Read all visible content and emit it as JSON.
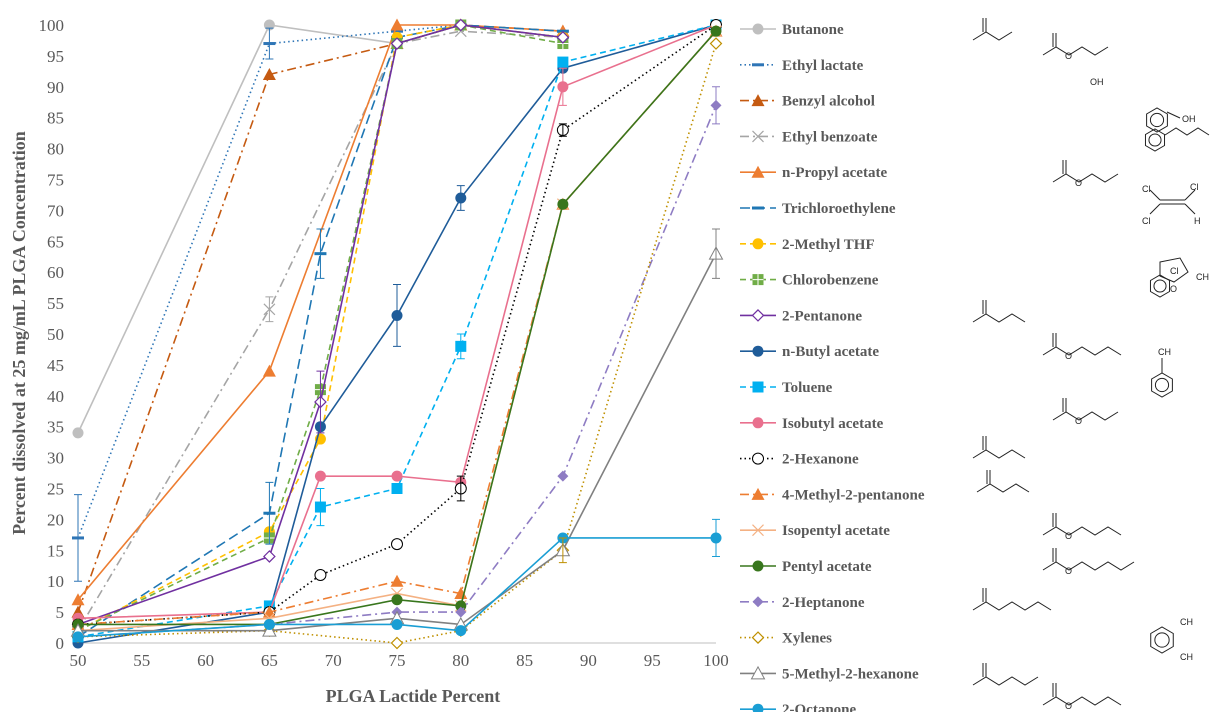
{
  "chart_data": {
    "type": "line",
    "title": "",
    "xlabel": "PLGA Lactide Percent",
    "ylabel": "Percent dissolved at 25 mg/mL PLGA Concentration",
    "xlim": [
      50,
      100
    ],
    "ylim": [
      0,
      100
    ],
    "xticks": [
      50,
      55,
      60,
      65,
      70,
      75,
      80,
      85,
      90,
      95,
      100
    ],
    "yticks": [
      0,
      5,
      10,
      15,
      20,
      25,
      30,
      35,
      40,
      45,
      50,
      55,
      60,
      65,
      70,
      75,
      80,
      85,
      90,
      95,
      100
    ],
    "grid": false,
    "legend_position": "right",
    "x_categories_note": "",
    "series": [
      {
        "name": "Butanone",
        "color": "#BFBFBF",
        "dash": "solid",
        "marker": "circle",
        "x": [
          50,
          65,
          75,
          80,
          88
        ],
        "y": [
          34,
          100,
          97,
          100,
          98
        ]
      },
      {
        "name": "Ethyl lactate",
        "color": "#2E75B6",
        "dash": "dot",
        "marker": "dash",
        "x": [
          50,
          65,
          75,
          80,
          88
        ],
        "y": [
          17,
          97,
          99,
          100,
          98
        ]
      },
      {
        "name": "Benzyl alcohol",
        "color": "#C55A11",
        "dash": "dashdot",
        "marker": "triangle",
        "x": [
          50,
          65,
          75,
          80,
          88
        ],
        "y": [
          5,
          92,
          97,
          100,
          99
        ]
      },
      {
        "name": "Ethyl benzoate",
        "color": "#A5A5A5",
        "dash": "dashdot",
        "marker": "x",
        "x": [
          50,
          65,
          75,
          80,
          88
        ],
        "y": [
          2,
          54,
          97,
          99,
          98
        ]
      },
      {
        "name": "n-Propyl acetate",
        "color": "#ED7D31",
        "dash": "solid",
        "marker": "triangle",
        "x": [
          50,
          65,
          75,
          80,
          88
        ],
        "y": [
          7,
          44,
          100,
          100,
          99
        ]
      },
      {
        "name": "Trichloroethylene",
        "color": "#1F77B4",
        "dash": "longdash",
        "marker": "dash",
        "x": [
          50,
          65,
          69,
          75,
          80,
          88
        ],
        "y": [
          1,
          21,
          63,
          98,
          100,
          99
        ]
      },
      {
        "name": "2-Methyl THF",
        "color": "#FFC000",
        "dash": "dash",
        "marker": "circle",
        "x": [
          50,
          65,
          69,
          75,
          80,
          88
        ],
        "y": [
          2,
          18,
          33,
          98,
          100,
          98
        ]
      },
      {
        "name": "Chlorobenzene",
        "color": "#70AD47",
        "dash": "dash",
        "marker": "square-plus",
        "x": [
          50,
          65,
          69,
          75,
          80,
          88
        ],
        "y": [
          2,
          17,
          41,
          97,
          100,
          97
        ]
      },
      {
        "name": "2-Pentanone",
        "color": "#7030A0",
        "dash": "solid",
        "marker": "diamond-open",
        "x": [
          50,
          65,
          69,
          75,
          80,
          88
        ],
        "y": [
          3,
          14,
          39,
          97,
          100,
          98
        ]
      },
      {
        "name": "n-Butyl acetate",
        "color": "#1F5C99",
        "dash": "solid",
        "marker": "circle",
        "x": [
          50,
          65,
          69,
          75,
          80,
          88,
          100
        ],
        "y": [
          0,
          5,
          35,
          53,
          72,
          93,
          100
        ]
      },
      {
        "name": "Toluene",
        "color": "#00B0F0",
        "dash": "dash",
        "marker": "square",
        "x": [
          50,
          65,
          69,
          75,
          80,
          88,
          100
        ],
        "y": [
          1,
          6,
          22,
          25,
          48,
          94,
          100
        ]
      },
      {
        "name": "Isobutyl acetate",
        "color": "#E9708E",
        "dash": "solid",
        "marker": "circle",
        "x": [
          50,
          65,
          69,
          75,
          80,
          88,
          100
        ],
        "y": [
          4,
          5,
          27,
          27,
          26,
          90,
          100
        ]
      },
      {
        "name": "2-Hexanone",
        "color": "#000000",
        "dash": "dot",
        "marker": "circle-open",
        "x": [
          50,
          65,
          69,
          75,
          80,
          88,
          100
        ],
        "y": [
          3,
          5,
          11,
          16,
          25,
          83,
          100
        ]
      },
      {
        "name": "4-Methyl-2-pentanone",
        "color": "#ED7D31",
        "dash": "dashdot",
        "marker": "triangle",
        "x": [
          50,
          65,
          75,
          80,
          88,
          100
        ],
        "y": [
          3,
          5,
          10,
          8,
          71,
          99
        ]
      },
      {
        "name": "Isopentyl acetate",
        "color": "#F4B183",
        "dash": "solid",
        "marker": "x",
        "x": [
          50,
          65,
          75,
          80,
          88,
          100
        ],
        "y": [
          2,
          4,
          8,
          6,
          71,
          99
        ]
      },
      {
        "name": "Pentyl acetate",
        "color": "#38761D",
        "dash": "solid",
        "marker": "circle",
        "x": [
          50,
          65,
          75,
          80,
          88,
          100
        ],
        "y": [
          3,
          3,
          7,
          6,
          71,
          99
        ]
      },
      {
        "name": "2-Heptanone",
        "color": "#8E7CC3",
        "dash": "dashdot",
        "marker": "diamond",
        "x": [
          50,
          65,
          75,
          80,
          88,
          100
        ],
        "y": [
          1,
          3,
          5,
          5,
          27,
          87
        ]
      },
      {
        "name": "Xylenes",
        "color": "#BF9000",
        "dash": "dot",
        "marker": "diamond-open",
        "x": [
          50,
          65,
          75,
          80,
          88,
          100
        ],
        "y": [
          1,
          2,
          0,
          2,
          15,
          97
        ]
      },
      {
        "name": "5-Methyl-2-hexanone",
        "color": "#808080",
        "dash": "solid",
        "marker": "triangle-open",
        "x": [
          50,
          65,
          75,
          80,
          88,
          100
        ],
        "y": [
          2,
          2,
          4,
          3,
          15,
          63
        ]
      },
      {
        "name": "2-Octanone",
        "color": "#1A9ED4",
        "dash": "solid",
        "marker": "circle",
        "x": [
          50,
          65,
          75,
          80,
          88,
          100
        ],
        "y": [
          1,
          3,
          3,
          2,
          17,
          17
        ]
      }
    ],
    "error_bars": [
      {
        "series": "Ethyl lactate",
        "x": 50,
        "y": 17,
        "err": 7
      },
      {
        "series": "Ethyl lactate",
        "x": 65,
        "y": 97,
        "err": 2.5
      },
      {
        "series": "Trichloroethylene",
        "x": 65,
        "y": 21,
        "err": 5
      },
      {
        "series": "Trichloroethylene",
        "x": 69,
        "y": 63,
        "err": 4
      },
      {
        "series": "Ethyl benzoate",
        "x": 65,
        "y": 54,
        "err": 2
      },
      {
        "series": "2-Pentanone",
        "x": 69,
        "y": 39,
        "err": 5
      },
      {
        "series": "Toluene",
        "x": 69,
        "y": 22,
        "err": 3
      },
      {
        "series": "n-Butyl acetate",
        "x": 75,
        "y": 53,
        "err": 5
      },
      {
        "series": "n-Butyl acetate",
        "x": 80,
        "y": 72,
        "err": 2
      },
      {
        "series": "Toluene",
        "x": 80,
        "y": 48,
        "err": 2
      },
      {
        "series": "Isobutyl acetate",
        "x": 88,
        "y": 90,
        "err": 3
      },
      {
        "series": "2-Hexanone",
        "x": 80,
        "y": 25,
        "err": 2
      },
      {
        "series": "2-Hexanone",
        "x": 88,
        "y": 83,
        "err": 1
      },
      {
        "series": "Xylenes",
        "x": 88,
        "y": 15,
        "err": 2
      },
      {
        "series": "2-Heptanone",
        "x": 100,
        "y": 87,
        "err": 3
      },
      {
        "series": "5-Methyl-2-hexanone",
        "x": 100,
        "y": 63,
        "err": 4
      },
      {
        "series": "2-Octanone",
        "x": 100,
        "y": 17,
        "err": 3
      }
    ]
  },
  "structure_icons": [
    "butanone-structure-icon",
    "ethyl-lactate-structure-icon",
    "benzyl-alcohol-structure-icon",
    "ethyl-benzoate-structure-icon",
    "propyl-acetate-structure-icon",
    "trichloroethylene-structure-icon",
    "methyl-thf-structure-icon",
    "chlorobenzene-structure-icon",
    "pentanone-structure-icon",
    "butyl-acetate-structure-icon",
    "toluene-structure-icon",
    "isobutyl-acetate-structure-icon",
    "hexanone-structure-icon",
    "methyl-pentanone-structure-icon",
    "isopentyl-acetate-structure-icon",
    "pentyl-acetate-structure-icon",
    "heptanone-structure-icon",
    "xylene-structure-icon",
    "methyl-hexanone-structure-icon",
    "octanone-structure-icon"
  ],
  "structure_text": {
    "oh1": "OH",
    "oh2": "OH",
    "o_ester": "O",
    "cl1": "Cl",
    "cl2": "Cl",
    "cl3": "Cl",
    "h": "H",
    "o_thf": "O",
    "ch3_thf": "CH",
    "cl_benz": "Cl",
    "ch3_tol": "CH",
    "ch3_xyl1": "CH",
    "ch3_xyl2": "CH"
  }
}
